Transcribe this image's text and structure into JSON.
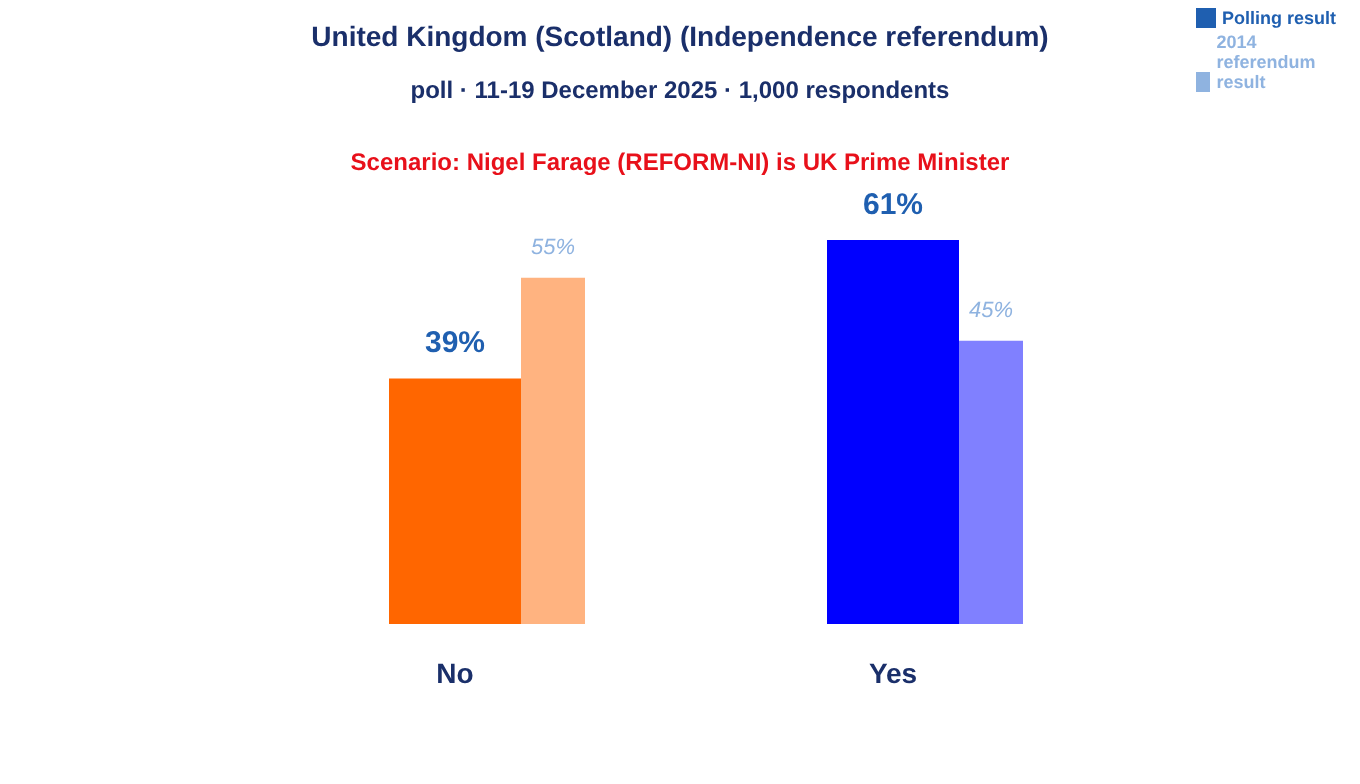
{
  "chart_data": {
    "type": "bar",
    "title": "United Kingdom (Scotland) (Independence referendum)",
    "subtitle": "poll · 11-19 December 2025 · 1,000 respondents",
    "annotations": [
      "Scenario: Nigel Farage (REFORM-NI) is UK Prime Minister"
    ],
    "categories": [
      "No",
      "Yes"
    ],
    "series": [
      {
        "name": "Polling result",
        "color": "#1f5fb0",
        "colors": [
          "#ff6600",
          "#0000ff"
        ],
        "values": [
          39,
          61
        ],
        "value_labels": [
          "39%",
          "61%"
        ]
      },
      {
        "name": "2014 referendum result",
        "color": "#8fb3e0",
        "colors": [
          "#ffb380",
          "#8080ff"
        ],
        "values": [
          55,
          45
        ],
        "value_labels": [
          "55%",
          "45%"
        ]
      }
    ],
    "legend": "top right"
  }
}
